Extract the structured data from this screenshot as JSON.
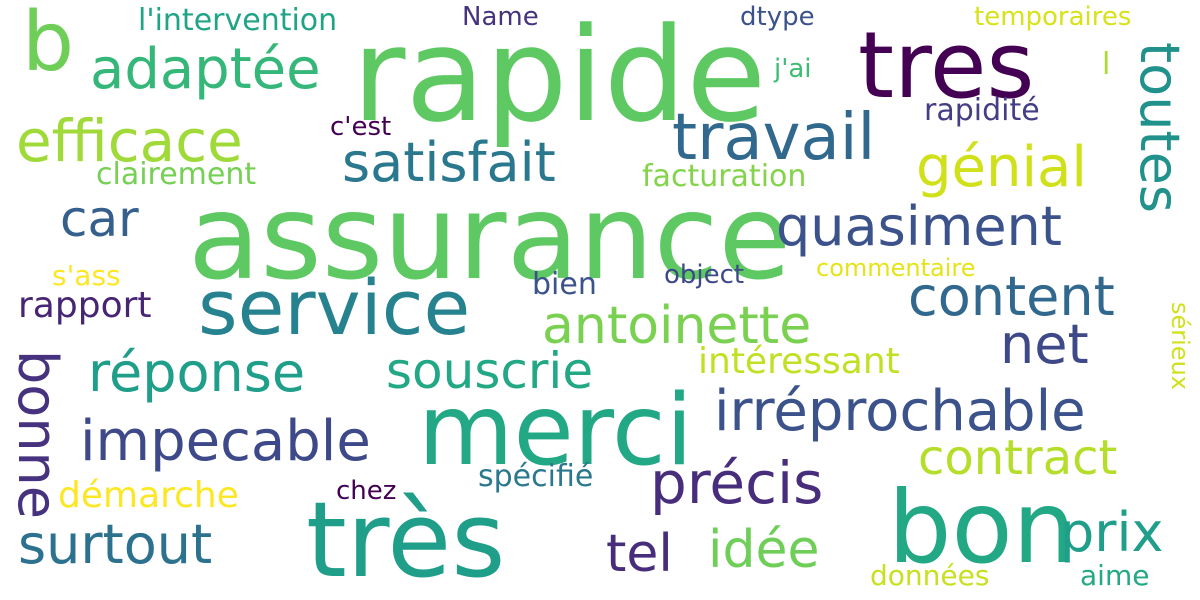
{
  "colors": {
    "background": "#ffffff",
    "palette": [
      "#440154",
      "#482878",
      "#3e4989",
      "#31688e",
      "#26828e",
      "#1f9e89",
      "#35b779",
      "#6ece58",
      "#b5de2b",
      "#fde725"
    ]
  },
  "words": [
    {
      "text": "rapide",
      "color": "#5ec962"
    },
    {
      "text": "assurance",
      "color": "#5ec962"
    },
    {
      "text": "tres",
      "color": "#440154"
    },
    {
      "text": "merci",
      "color": "#22a884"
    },
    {
      "text": "très",
      "color": "#1f9e89"
    },
    {
      "text": "bon",
      "color": "#22a884"
    },
    {
      "text": "service",
      "color": "#26828e"
    },
    {
      "text": "b",
      "color": "#6ece58"
    },
    {
      "text": "travail",
      "color": "#31688e"
    },
    {
      "text": "efficace",
      "color": "#a0da39"
    },
    {
      "text": "adaptée",
      "color": "#35b779"
    },
    {
      "text": "satisfait",
      "color": "#2a788e"
    },
    {
      "text": "génial",
      "color": "#d0e11c"
    },
    {
      "text": "toutes",
      "color": "#21918c"
    },
    {
      "text": "quasiment",
      "color": "#3b528b"
    },
    {
      "text": "car",
      "color": "#355f8d"
    },
    {
      "text": "content",
      "color": "#31688e"
    },
    {
      "text": "antoinette",
      "color": "#7ad151"
    },
    {
      "text": "net",
      "color": "#3e4989"
    },
    {
      "text": "réponse",
      "color": "#1f9e89"
    },
    {
      "text": "souscrie",
      "color": "#22a884"
    },
    {
      "text": "bonne",
      "color": "#46327e"
    },
    {
      "text": "impecable",
      "color": "#3e4989"
    },
    {
      "text": "irréprochable",
      "color": "#3b528b"
    },
    {
      "text": "contract",
      "color": "#b5de2b"
    },
    {
      "text": "précis",
      "color": "#472d7b"
    },
    {
      "text": "surtout",
      "color": "#2c728e"
    },
    {
      "text": "prix",
      "color": "#1f9e89"
    },
    {
      "text": "idée",
      "color": "#6ece58"
    },
    {
      "text": "tel",
      "color": "#472d7b"
    },
    {
      "text": "l'intervention",
      "color": "#20a486"
    },
    {
      "text": "rapport",
      "color": "#482475"
    },
    {
      "text": "intéressant",
      "color": "#c2df23"
    },
    {
      "text": "démarche",
      "color": "#fde725"
    },
    {
      "text": "rapidité",
      "color": "#433e85"
    },
    {
      "text": "clairement",
      "color": "#75d054"
    },
    {
      "text": "facturation",
      "color": "#84d44b"
    },
    {
      "text": "spécifié",
      "color": "#2a788e"
    },
    {
      "text": "Name",
      "color": "#46337e"
    },
    {
      "text": "dtype",
      "color": "#3b528b"
    },
    {
      "text": "temporaires",
      "color": "#d8e219"
    },
    {
      "text": "j'ai",
      "color": "#3dbc74"
    },
    {
      "text": "l",
      "color": "#a8db34"
    },
    {
      "text": "c'est",
      "color": "#440154"
    },
    {
      "text": "s'ass",
      "color": "#fde725"
    },
    {
      "text": "commentaire",
      "color": "#e5e419"
    },
    {
      "text": "bien",
      "color": "#3b528b"
    },
    {
      "text": "object",
      "color": "#3e4989"
    },
    {
      "text": "chez",
      "color": "#440154"
    },
    {
      "text": "données",
      "color": "#c8e020"
    },
    {
      "text": "aime",
      "color": "#23a983"
    },
    {
      "text": "sérieux",
      "color": "#d0e11c"
    }
  ]
}
